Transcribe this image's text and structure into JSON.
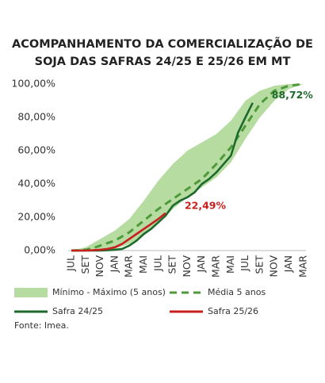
{
  "chart_data": {
    "type": "line",
    "title": [
      "ACOMPANHAMENTO DA COMERCIALIZAÇÃO DE",
      "SOJA DAS SAFRAS 24/25 E 25/26 EM MT"
    ],
    "categories": [
      "JUL",
      null,
      "SET",
      null,
      "NOV",
      null,
      "JAN",
      null,
      "MAR",
      null,
      "MAI",
      null,
      "JUL",
      null,
      "SET",
      null,
      "NOV",
      null,
      "JAN",
      null,
      "MAR",
      null,
      "MAI",
      null,
      "JUL",
      null,
      "SET",
      null,
      "NOV",
      null,
      "JAN",
      null,
      "MAR"
    ],
    "ylim": [
      0,
      100
    ],
    "yticks": [
      {
        "value": 0,
        "label": "0,00%"
      },
      {
        "value": 20,
        "label": "20,00%"
      },
      {
        "value": 40,
        "label": "40,00%"
      },
      {
        "value": 60,
        "label": "60,00%"
      },
      {
        "value": 80,
        "label": "80,00%"
      },
      {
        "value": 100,
        "label": "100,00%"
      }
    ],
    "grid": false,
    "series": [
      {
        "name": "Mínimo - Máximo (5 anos)",
        "color": "#b7dca2",
        "style": "band",
        "low": [
          0,
          0,
          0,
          0.2,
          0.5,
          0.7,
          1,
          2.5,
          4,
          6.5,
          9,
          12.5,
          16,
          20.5,
          25,
          28.5,
          32,
          35,
          38,
          41,
          44,
          48.5,
          53,
          60,
          67,
          73.5,
          80,
          85,
          90,
          93.5,
          97,
          98.5,
          100
        ],
        "high": [
          0,
          1,
          2,
          4.5,
          7,
          9.5,
          12,
          15.5,
          19,
          24.5,
          30,
          36,
          42,
          47,
          52,
          56,
          60,
          62.5,
          65,
          67.5,
          70,
          74,
          78,
          84,
          90,
          93,
          96,
          97.5,
          99,
          99.5,
          100,
          100,
          100
        ]
      },
      {
        "name": "Média 5 anos",
        "color": "#4e9a3a",
        "style": "dashed",
        "values": [
          0,
          0.2,
          0.5,
          1.5,
          3,
          4.5,
          6,
          8.5,
          11,
          14.5,
          18,
          21.5,
          25,
          28,
          31,
          34,
          37,
          40,
          43,
          47.5,
          52,
          57,
          62,
          68.5,
          75,
          81.5,
          88,
          92,
          96,
          97.5,
          99,
          99.5,
          100
        ]
      },
      {
        "name": "Safra 24/25",
        "color": "#1e6a2c",
        "style": "solid",
        "values": [
          0,
          0,
          0,
          0,
          0,
          0.2,
          0.5,
          1,
          3,
          6,
          10,
          13,
          17,
          21,
          27,
          30,
          32,
          35,
          40,
          43,
          47,
          52,
          57,
          71,
          80,
          88.72,
          null,
          null,
          null,
          null,
          null,
          null,
          null
        ],
        "value_labels": [
          null,
          null,
          null,
          null,
          null,
          null,
          null,
          null,
          null,
          null,
          null,
          null,
          null,
          null,
          null,
          null,
          null,
          null,
          null,
          null,
          null,
          null,
          null,
          null,
          null,
          "88,72%",
          null,
          null,
          null,
          null,
          null,
          null,
          null
        ]
      },
      {
        "name": "Safra 25/26",
        "color": "#c8201e",
        "style": "solid",
        "values": [
          0,
          0,
          0,
          0.2,
          0.5,
          1,
          2,
          4,
          7,
          10,
          13,
          16,
          19,
          22.49,
          null,
          null,
          null,
          null,
          null,
          null,
          null,
          null,
          null,
          null,
          null,
          null,
          null,
          null,
          null,
          null,
          null,
          null,
          null
        ],
        "value_labels": [
          null,
          null,
          null,
          null,
          null,
          null,
          null,
          null,
          null,
          null,
          null,
          null,
          null,
          "22,49%",
          null,
          null,
          null,
          null,
          null,
          null,
          null,
          null,
          null,
          null,
          null,
          null,
          null,
          null,
          null,
          null,
          null,
          null,
          null
        ]
      }
    ],
    "source": "Fonte: Imea."
  }
}
